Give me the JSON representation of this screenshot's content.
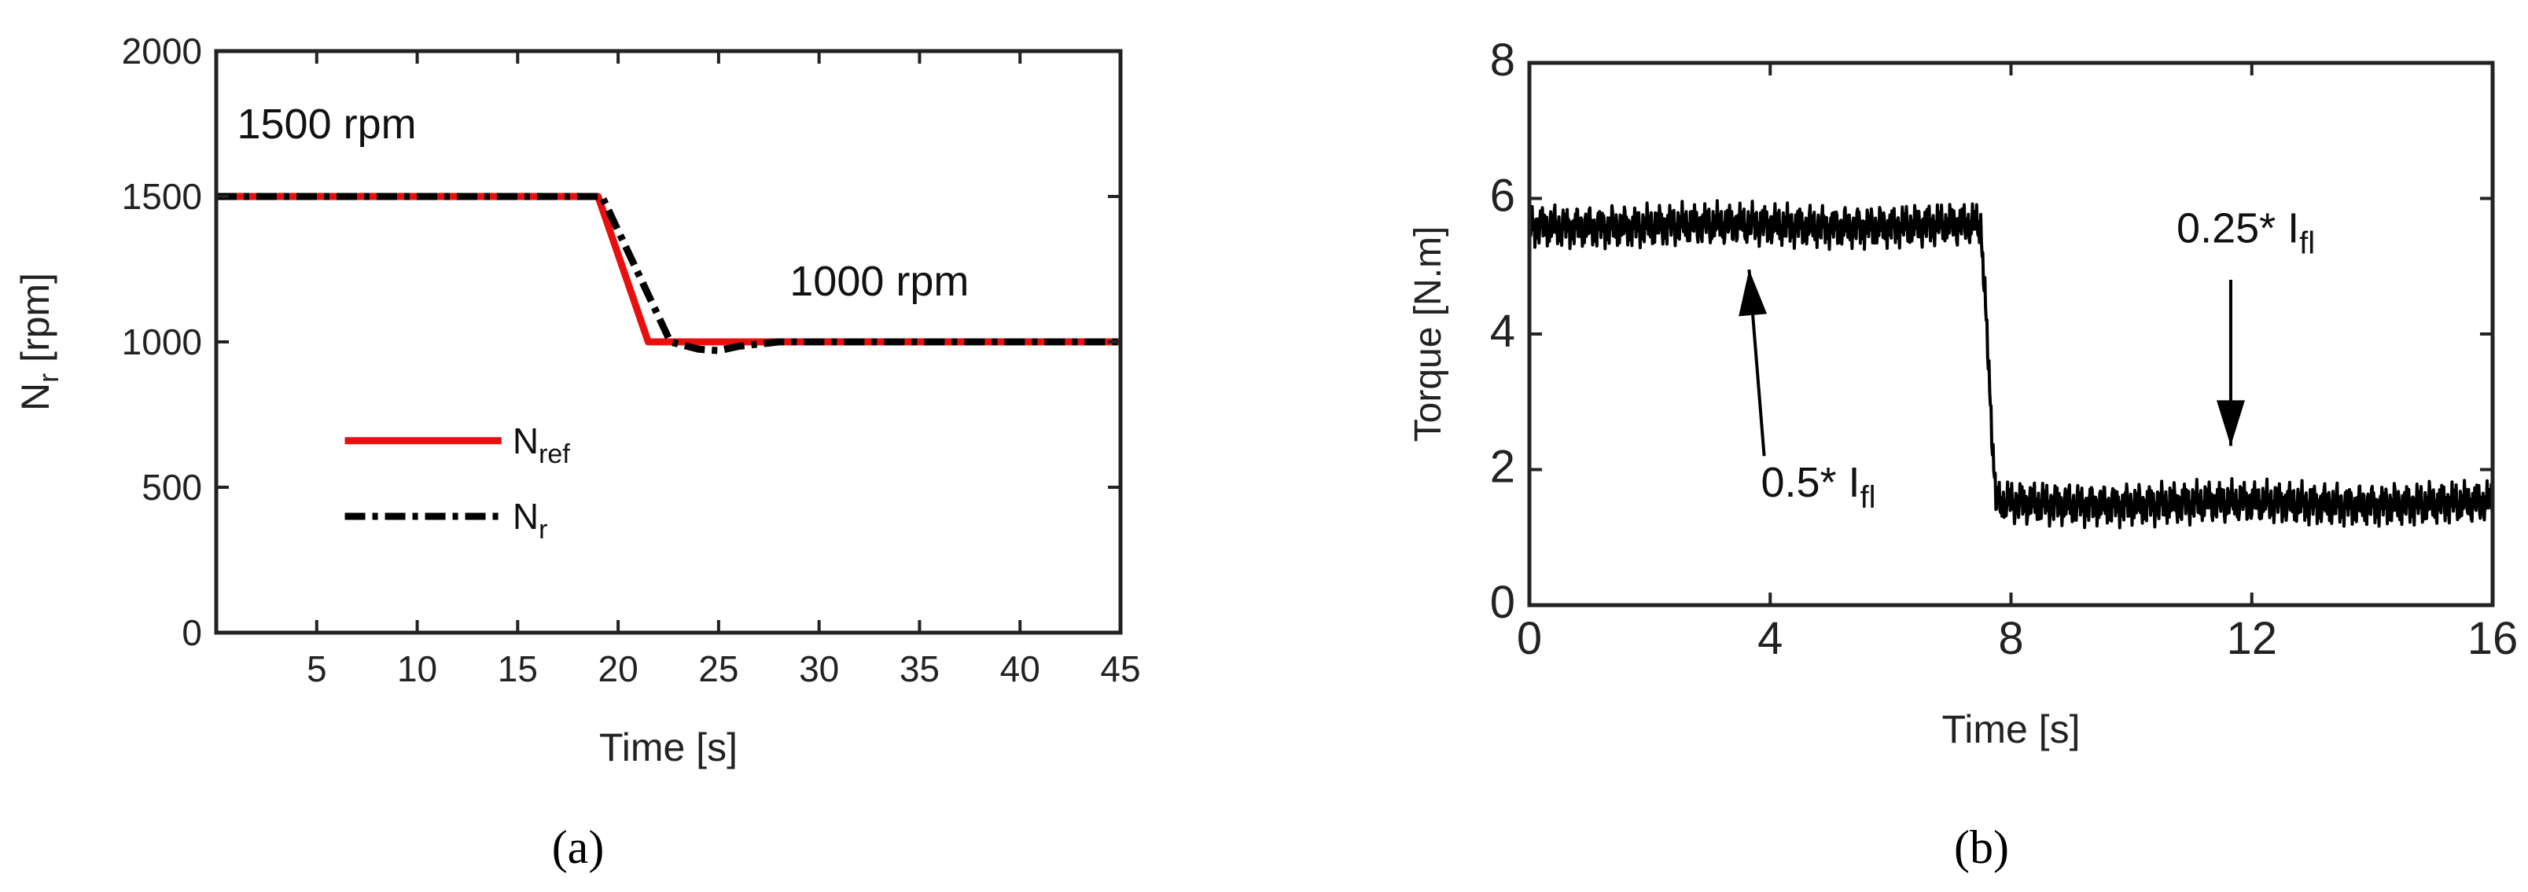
{
  "chart_data": [
    {
      "type": "line",
      "panel_label": "(a)",
      "xlabel": "Time [s]",
      "ylabel": {
        "main": "N",
        "sub": "r",
        "rest": " [rpm]"
      },
      "xlim": [
        0,
        45
      ],
      "ylim": [
        0,
        2000
      ],
      "xticks": [
        5,
        10,
        15,
        20,
        25,
        30,
        35,
        40,
        45
      ],
      "yticks": [
        0,
        500,
        1000,
        1500,
        2000
      ],
      "grid": false,
      "legend_position": "lower-left",
      "series": [
        {
          "name": {
            "main": "N",
            "sub": "ref"
          },
          "color": "#e8100e",
          "style": "solid",
          "x": [
            0,
            19,
            21.5,
            45
          ],
          "y": [
            1500,
            1500,
            1000,
            1000
          ]
        },
        {
          "name": {
            "main": "N",
            "sub": "r"
          },
          "color": "#000000",
          "style": "dashdot",
          "x": [
            0,
            19.2,
            22.6,
            24,
            25,
            26,
            28,
            45
          ],
          "y": [
            1500,
            1500,
            1000,
            975,
            970,
            985,
            1000,
            1000
          ]
        }
      ],
      "annotations": [
        {
          "text": "1500 rpm",
          "x": 5.5,
          "y": 1700
        },
        {
          "text": "1000 rpm",
          "x": 33,
          "y": 1160
        }
      ]
    },
    {
      "type": "line",
      "panel_label": "(b)",
      "xlabel": "Time [s]",
      "ylabel": "Torque [N.m]",
      "xlim": [
        0,
        16
      ],
      "ylim": [
        0,
        8
      ],
      "xticks": [
        0,
        4,
        8,
        12,
        16
      ],
      "yticks": [
        0,
        2,
        4,
        6,
        8
      ],
      "grid": false,
      "series": [
        {
          "color": "#000000",
          "style": "solid-noisy",
          "x": [
            0,
            7.5,
            7.75,
            16
          ],
          "y_center": [
            5.6,
            5.6,
            1.5,
            1.5
          ],
          "ripple_amplitude": 0.32
        }
      ],
      "annotations": [
        {
          "text": {
            "main": "0.5* I",
            "sub": "fl"
          },
          "text_x": 4.8,
          "text_y": 1.6,
          "arrow_from": [
            3.9,
            2.2
          ],
          "arrow_to": [
            3.65,
            4.95
          ]
        },
        {
          "text": {
            "main": "0.25* I",
            "sub": "fl"
          },
          "text_x": 11.9,
          "text_y": 5.35,
          "arrow_from": [
            11.65,
            4.8
          ],
          "arrow_to": [
            11.65,
            2.35
          ]
        }
      ]
    }
  ]
}
